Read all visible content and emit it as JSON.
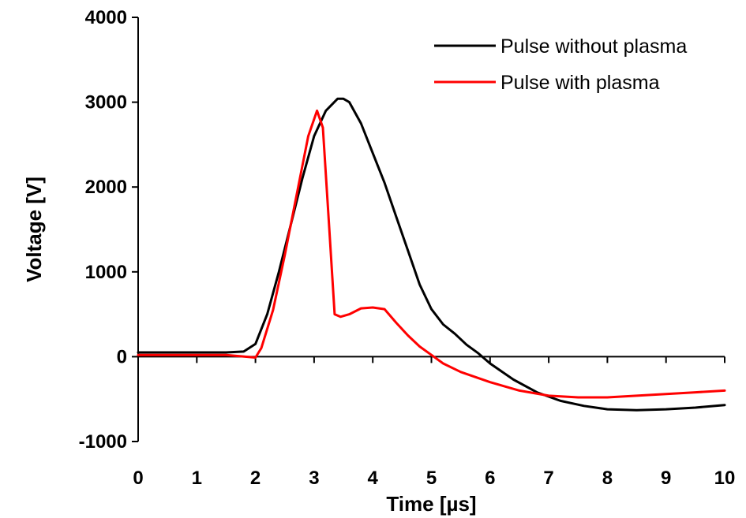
{
  "chart_data": {
    "type": "line",
    "xlabel": "Time [µs]",
    "ylabel": "Voltage [V]",
    "xlim": [
      0,
      10
    ],
    "ylim": [
      -1000,
      4000
    ],
    "xticks": [
      0,
      1,
      2,
      3,
      4,
      5,
      6,
      7,
      8,
      9,
      10
    ],
    "yticks": [
      -1000,
      0,
      1000,
      2000,
      3000,
      4000
    ],
    "grid": false,
    "legend_position": "top-right",
    "series": [
      {
        "name": "Pulse without plasma",
        "color": "#000000",
        "points": [
          [
            0,
            50
          ],
          [
            0.5,
            50
          ],
          [
            1.0,
            50
          ],
          [
            1.5,
            50
          ],
          [
            1.8,
            60
          ],
          [
            2.0,
            150
          ],
          [
            2.2,
            500
          ],
          [
            2.4,
            1000
          ],
          [
            2.6,
            1550
          ],
          [
            2.8,
            2100
          ],
          [
            3.0,
            2600
          ],
          [
            3.2,
            2900
          ],
          [
            3.4,
            3040
          ],
          [
            3.5,
            3040
          ],
          [
            3.6,
            3000
          ],
          [
            3.8,
            2750
          ],
          [
            4.0,
            2400
          ],
          [
            4.2,
            2050
          ],
          [
            4.4,
            1650
          ],
          [
            4.6,
            1250
          ],
          [
            4.8,
            850
          ],
          [
            5.0,
            560
          ],
          [
            5.2,
            380
          ],
          [
            5.4,
            270
          ],
          [
            5.6,
            140
          ],
          [
            5.8,
            40
          ],
          [
            6.0,
            -80
          ],
          [
            6.4,
            -270
          ],
          [
            6.8,
            -420
          ],
          [
            7.2,
            -520
          ],
          [
            7.6,
            -580
          ],
          [
            8.0,
            -620
          ],
          [
            8.5,
            -630
          ],
          [
            9.0,
            -620
          ],
          [
            9.5,
            -600
          ],
          [
            10.0,
            -570
          ]
        ]
      },
      {
        "name": "Pulse with plasma",
        "color": "#ff0000",
        "points": [
          [
            0,
            20
          ],
          [
            0.5,
            20
          ],
          [
            1.0,
            20
          ],
          [
            1.5,
            20
          ],
          [
            2.0,
            -10
          ],
          [
            2.1,
            100
          ],
          [
            2.3,
            550
          ],
          [
            2.5,
            1200
          ],
          [
            2.7,
            1900
          ],
          [
            2.9,
            2600
          ],
          [
            3.05,
            2900
          ],
          [
            3.15,
            2700
          ],
          [
            3.25,
            1600
          ],
          [
            3.35,
            500
          ],
          [
            3.45,
            470
          ],
          [
            3.6,
            500
          ],
          [
            3.8,
            570
          ],
          [
            4.0,
            580
          ],
          [
            4.2,
            560
          ],
          [
            4.4,
            400
          ],
          [
            4.6,
            250
          ],
          [
            4.8,
            120
          ],
          [
            5.0,
            20
          ],
          [
            5.2,
            -80
          ],
          [
            5.5,
            -180
          ],
          [
            6.0,
            -300
          ],
          [
            6.5,
            -400
          ],
          [
            7.0,
            -460
          ],
          [
            7.5,
            -480
          ],
          [
            8.0,
            -480
          ],
          [
            8.5,
            -460
          ],
          [
            9.0,
            -440
          ],
          [
            9.5,
            -420
          ],
          [
            10.0,
            -400
          ]
        ]
      }
    ]
  }
}
